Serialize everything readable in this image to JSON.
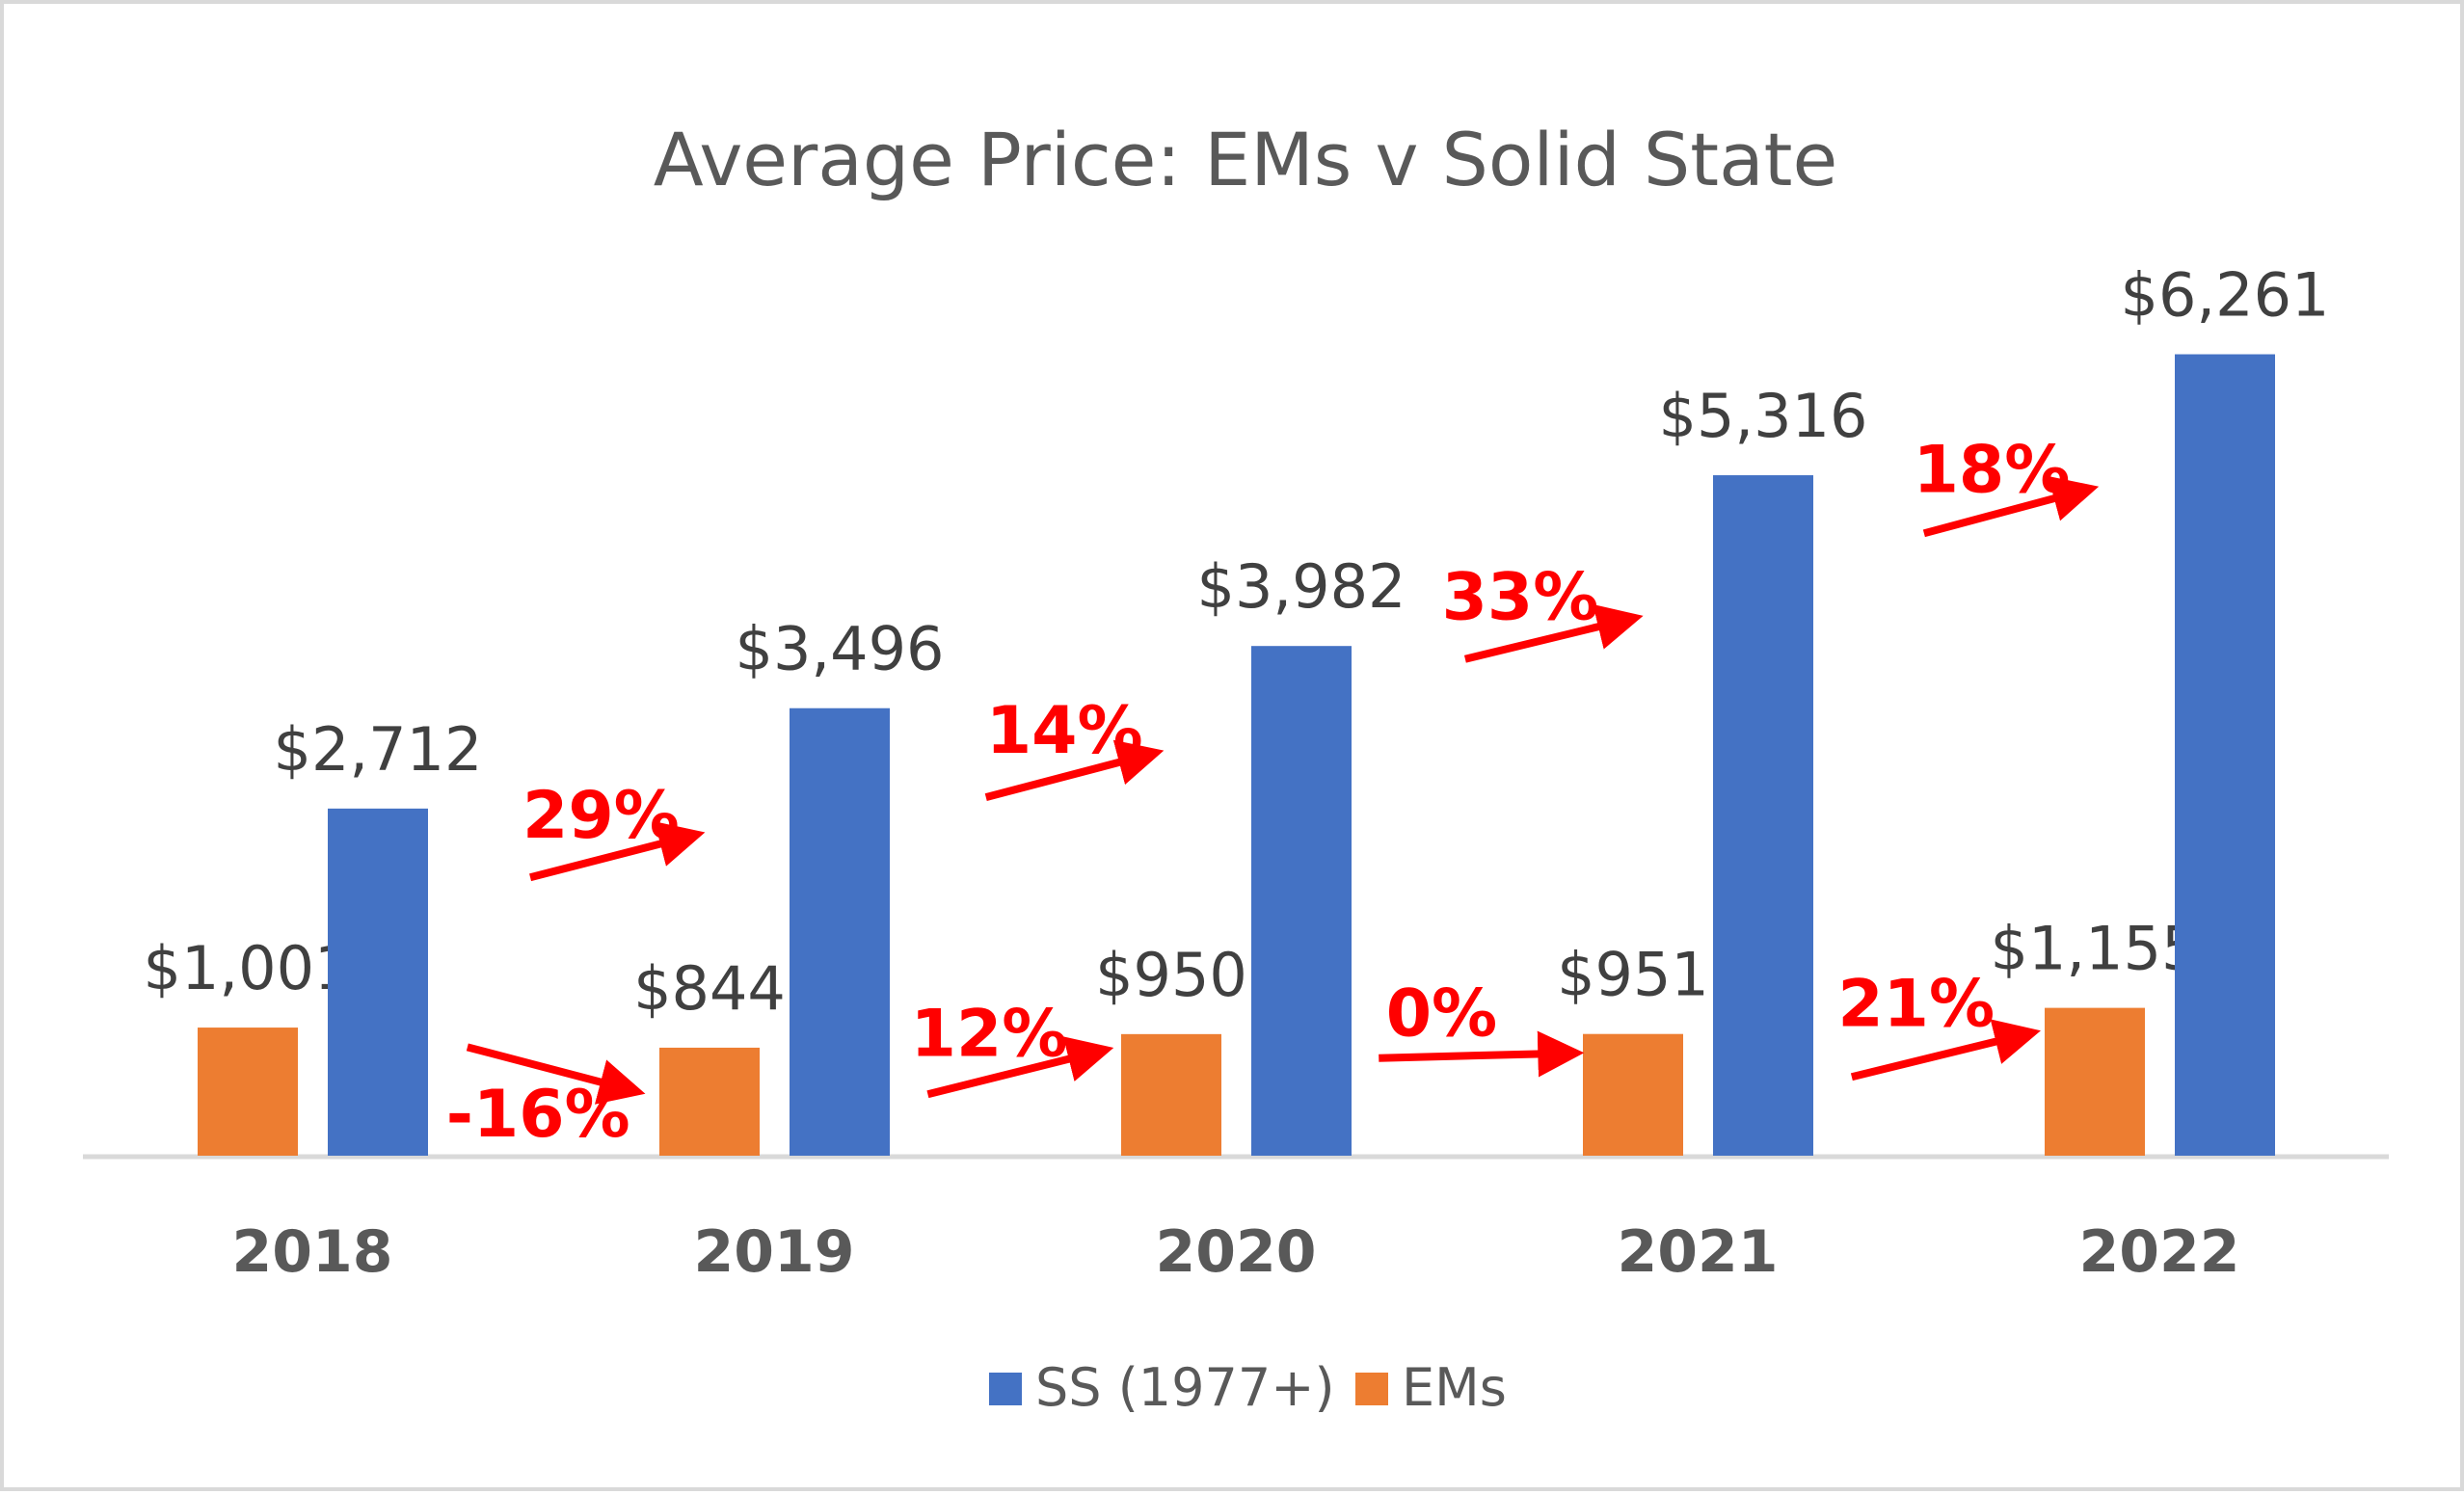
{
  "chart_data": {
    "type": "bar",
    "title": "Average Price: EMs v Solid State",
    "categories": [
      "2018",
      "2019",
      "2020",
      "2021",
      "2022"
    ],
    "series": [
      {
        "name": "EMs",
        "color": "#ed7d31",
        "values": [
          1001,
          844,
          950,
          951,
          1155
        ],
        "labels": [
          "$1,001",
          "$844",
          "$950",
          "$951",
          "$1,155"
        ]
      },
      {
        "name": "SS (1977+)",
        "color": "#4472c4",
        "values": [
          2712,
          3496,
          3982,
          5316,
          6261
        ],
        "labels": [
          "$2,712",
          "$3,496",
          "$3,982",
          "$5,316",
          "$6,261"
        ]
      }
    ],
    "legend": {
      "position": "bottom",
      "order": [
        "SS (1977+)",
        "EMs"
      ]
    },
    "annotations": {
      "color": "#ff0000",
      "ss_growth": [
        "29%",
        "14%",
        "33%",
        "18%"
      ],
      "em_growth": [
        "-16%",
        "12%",
        "0%",
        "21%"
      ]
    },
    "grid": false,
    "ylim": [
      0,
      6500
    ]
  }
}
